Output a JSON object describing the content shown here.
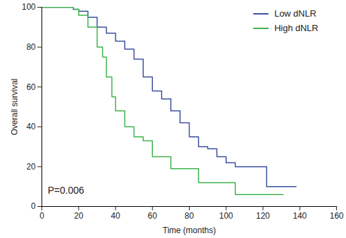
{
  "chart_data": {
    "type": "line",
    "xlabel": "Time (months)",
    "ylabel": "Overall survival",
    "annotation": "P=0.006",
    "legend": "top-right",
    "xlim": [
      0,
      160
    ],
    "xticks": [
      0,
      20,
      40,
      60,
      80,
      100,
      120,
      140,
      160
    ],
    "ylim": [
      0,
      100
    ],
    "yticks": [
      0,
      20,
      40,
      60,
      80,
      100
    ],
    "series": [
      {
        "name": "Low dNLR",
        "color": "#3b4f9e",
        "x": [
          0,
          17,
          20,
          25,
          30,
          35,
          40,
          45,
          50,
          55,
          60,
          65,
          70,
          75,
          80,
          85,
          90,
          95,
          100,
          105,
          110,
          122,
          138
        ],
        "values": [
          100,
          99,
          98,
          95,
          90,
          87,
          83,
          79,
          74,
          65,
          58,
          54,
          48,
          42,
          35,
          30,
          29,
          25,
          22,
          20,
          20,
          10,
          10
        ]
      },
      {
        "name": "High dNLR",
        "color": "#3cb44b",
        "x": [
          0,
          17,
          20,
          25,
          30,
          33,
          35,
          38,
          40,
          45,
          50,
          55,
          60,
          65,
          70,
          85,
          105,
          131
        ],
        "values": [
          100,
          99,
          96,
          90,
          80,
          75,
          65,
          55,
          48,
          40,
          35,
          33,
          25,
          25,
          19,
          12,
          6,
          6
        ]
      }
    ]
  }
}
